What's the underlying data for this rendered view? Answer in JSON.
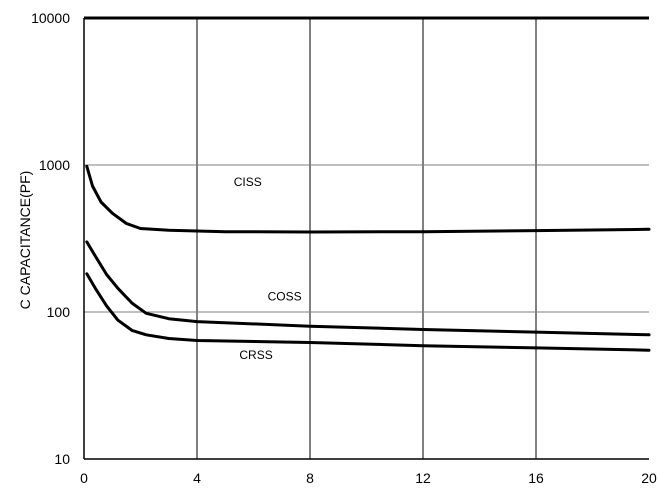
{
  "chart_data": {
    "type": "line",
    "title": "",
    "xlabel": "",
    "ylabel": "C CAPACITANCE(PF)",
    "x_scale": "linear",
    "y_scale": "log",
    "xlim": [
      0,
      20
    ],
    "ylim": [
      10,
      10000
    ],
    "x_ticks": [
      "0",
      "4",
      "8",
      "12",
      "16",
      "20"
    ],
    "y_ticks": [
      "10",
      "100",
      "1000",
      "10000"
    ],
    "grid": true,
    "legend": "none",
    "series": [
      {
        "name": "CISS",
        "label_at": [
          5.3,
          720
        ],
        "points": [
          [
            0.1,
            980
          ],
          [
            0.3,
            720
          ],
          [
            0.6,
            560
          ],
          [
            1.0,
            470
          ],
          [
            1.5,
            400
          ],
          [
            2.0,
            370
          ],
          [
            3,
            360
          ],
          [
            5,
            352
          ],
          [
            8,
            350
          ],
          [
            12,
            352
          ],
          [
            16,
            358
          ],
          [
            20,
            365
          ]
        ]
      },
      {
        "name": "COSS",
        "label_at": [
          6.5,
          120
        ],
        "points": [
          [
            0.1,
            300
          ],
          [
            0.4,
            240
          ],
          [
            0.8,
            180
          ],
          [
            1.2,
            145
          ],
          [
            1.7,
            115
          ],
          [
            2.2,
            98
          ],
          [
            3,
            90
          ],
          [
            4,
            86
          ],
          [
            8,
            80
          ],
          [
            12,
            76
          ],
          [
            16,
            73
          ],
          [
            20,
            70
          ]
        ]
      },
      {
        "name": "CRSS",
        "label_at": [
          5.5,
          48
        ],
        "points": [
          [
            0.1,
            182
          ],
          [
            0.4,
            145
          ],
          [
            0.8,
            110
          ],
          [
            1.2,
            88
          ],
          [
            1.7,
            75
          ],
          [
            2.2,
            70
          ],
          [
            3,
            66
          ],
          [
            4,
            64
          ],
          [
            8,
            62
          ],
          [
            12,
            59
          ],
          [
            16,
            57
          ],
          [
            20,
            55
          ]
        ]
      }
    ]
  }
}
